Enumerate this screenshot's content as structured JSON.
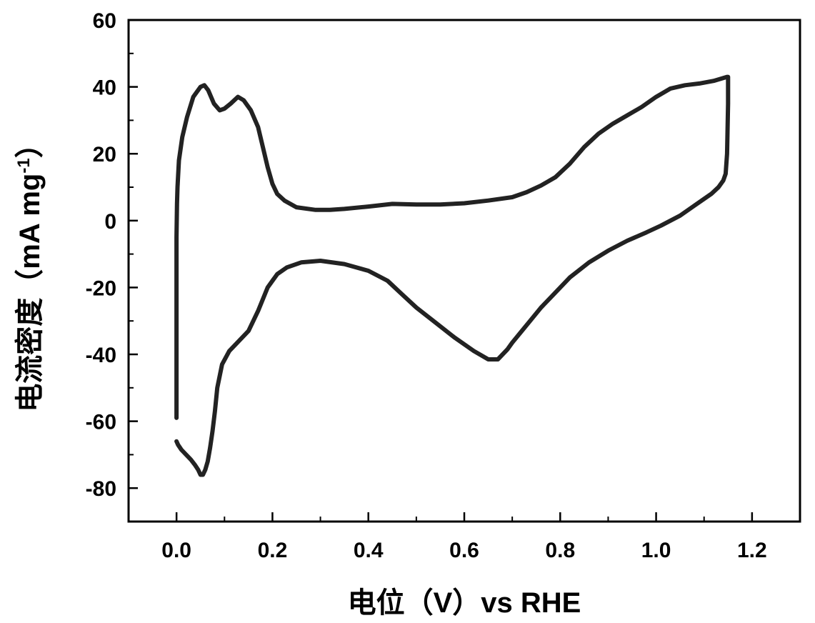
{
  "chart_data": {
    "type": "line",
    "title": "",
    "xlabel": "电位（V）vs RHE",
    "ylabel": {
      "main": "电流密度（mA mg",
      "sup": "-1",
      "close": "）"
    },
    "xlim": [
      -0.1,
      1.3
    ],
    "ylim": [
      -90,
      60
    ],
    "x_ticks": [
      0.0,
      0.2,
      0.4,
      0.6,
      0.8,
      1.0,
      1.2
    ],
    "x_tick_labels": [
      "0.0",
      "0.2",
      "0.4",
      "0.6",
      "0.8",
      "1.0",
      "1.2"
    ],
    "y_ticks": [
      60,
      40,
      20,
      0,
      -20,
      -40,
      -60,
      -80
    ],
    "y_tick_labels": [
      "60",
      "40",
      "20",
      "0",
      "-20",
      "-40",
      "-60",
      "-80"
    ],
    "grid": false,
    "series": [
      {
        "color": "#222222",
        "x": [
          0.0,
          0.0,
          0.001,
          0.002,
          0.005,
          0.012,
          0.022,
          0.035,
          0.05,
          0.058,
          0.066,
          0.078,
          0.09,
          0.1,
          0.113,
          0.128,
          0.14,
          0.155,
          0.17,
          0.18,
          0.19,
          0.2,
          0.21,
          0.225,
          0.25,
          0.29,
          0.32,
          0.35,
          0.4,
          0.45,
          0.5,
          0.55,
          0.6,
          0.65,
          0.7,
          0.73,
          0.76,
          0.79,
          0.82,
          0.85,
          0.88,
          0.91,
          0.94,
          0.97,
          1.0,
          1.03,
          1.06,
          1.09,
          1.12,
          1.148,
          1.15,
          1.15,
          1.148,
          1.145,
          1.14,
          1.13,
          1.115,
          1.1,
          1.08,
          1.05,
          1.01,
          0.98,
          0.94,
          0.9,
          0.86,
          0.82,
          0.8,
          0.78,
          0.76,
          0.74,
          0.72,
          0.7,
          0.69,
          0.68,
          0.67,
          0.65,
          0.62,
          0.58,
          0.54,
          0.5,
          0.47,
          0.44,
          0.4,
          0.35,
          0.3,
          0.26,
          0.23,
          0.21,
          0.19,
          0.17,
          0.15,
          0.13,
          0.11,
          0.095,
          0.085,
          0.08,
          0.075,
          0.07,
          0.065,
          0.06,
          0.055,
          0.05,
          0.045,
          0.038,
          0.03,
          0.02,
          0.01,
          0.003,
          0.0
        ],
        "y": [
          -59,
          -5,
          5,
          10,
          18,
          25,
          31,
          37,
          40,
          40.5,
          39,
          35,
          33,
          33.5,
          35,
          37,
          36,
          33,
          28,
          22,
          16,
          11,
          8,
          6,
          4,
          3.2,
          3.2,
          3.5,
          4.2,
          5,
          4.8,
          4.8,
          5.2,
          6,
          7,
          8.5,
          10.5,
          13,
          17,
          22,
          26,
          29,
          31.5,
          34,
          37,
          39.5,
          40.5,
          41,
          41.8,
          43,
          43,
          35,
          20,
          14,
          12,
          10,
          8,
          6.5,
          4.5,
          1.5,
          -1.5,
          -3.5,
          -6,
          -9,
          -12.5,
          -17,
          -20,
          -23,
          -26,
          -29.5,
          -33,
          -36.5,
          -38.5,
          -40,
          -41.5,
          -41.5,
          -39,
          -35,
          -30.5,
          -26,
          -22,
          -18,
          -15,
          -13,
          -12,
          -12.5,
          -14,
          -16,
          -20,
          -27,
          -33,
          -36,
          -39,
          -43,
          -50,
          -57,
          -63,
          -68,
          -72,
          -74.5,
          -76,
          -76,
          -74.5,
          -73,
          -71.5,
          -70,
          -68.5,
          -67,
          -66
        ]
      }
    ]
  }
}
